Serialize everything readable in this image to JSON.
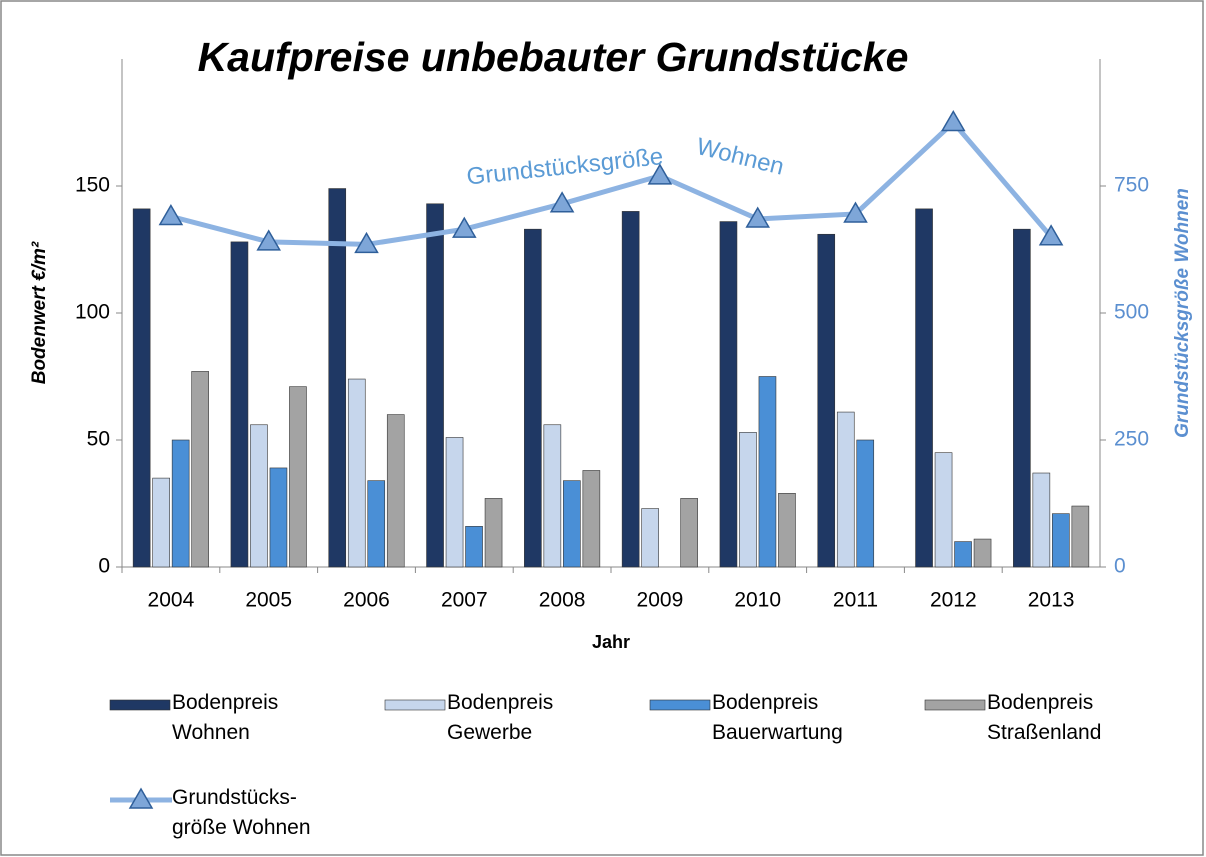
{
  "chart_data": {
    "type": "bar",
    "title": "Kaufpreise unbebauter Grundstücke",
    "xlabel": "Jahr",
    "ylabel": "Bodenwert €/m²",
    "y2label": "Grundstücksgröße Wohnen",
    "annotations": [
      "Grundstücksgröße",
      "Wohnen"
    ],
    "categories": [
      "2004",
      "2005",
      "2006",
      "2007",
      "2008",
      "2009",
      "2010",
      "2011",
      "2012",
      "2013"
    ],
    "series": [
      {
        "name": "Bodenpreis Wohnen",
        "color": "#1f3864",
        "values": [
          141,
          128,
          149,
          143,
          133,
          140,
          136,
          131,
          141,
          133
        ]
      },
      {
        "name": "Bodenpreis Gewerbe",
        "color": "#c6d6ec",
        "values": [
          35,
          56,
          74,
          51,
          56,
          23,
          53,
          61,
          45,
          37
        ]
      },
      {
        "name": "Bodenpreis Bauerwartung",
        "color": "#4a8fd6",
        "values": [
          50,
          39,
          34,
          16,
          34,
          null,
          75,
          50,
          10,
          21
        ]
      },
      {
        "name": "Bodenpreis Straßenland",
        "color": "#a3a3a3",
        "values": [
          77,
          71,
          60,
          27,
          38,
          27,
          29,
          null,
          11,
          24
        ]
      },
      {
        "name": "Grundstücks-größe Wohnen",
        "color": "#8db3e2",
        "type": "line",
        "axis": "y2",
        "values": [
          690,
          640,
          635,
          665,
          715,
          770,
          685,
          695,
          875,
          650
        ]
      }
    ],
    "ylim": [
      0,
      200
    ],
    "yticks": [
      0,
      50,
      100,
      150
    ],
    "y2lim": [
      0,
      1000
    ],
    "y2ticks": [
      0,
      250,
      500,
      750
    ],
    "legend": "bottom"
  }
}
